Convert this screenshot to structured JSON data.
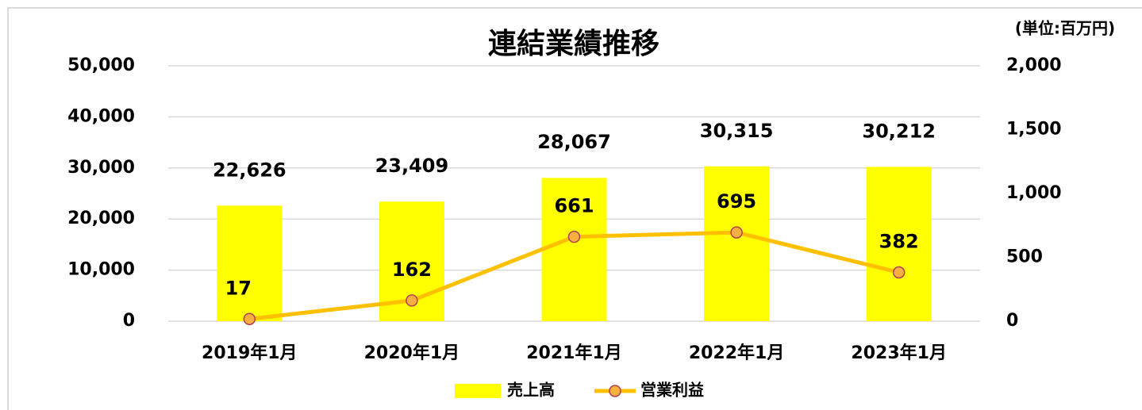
{
  "chart_data": {
    "type": "combo",
    "title": "連結業績推移",
    "annotation": "(単位:百万円)",
    "categories": [
      "2019年1月",
      "2020年1月",
      "2021年1月",
      "2022年1月",
      "2023年1月"
    ],
    "series": [
      {
        "name": "売上高",
        "type": "bar",
        "color": "#ffff00",
        "axis": "y",
        "values": [
          22626,
          23409,
          28067,
          30315,
          30212
        ],
        "value_labels": [
          "22,626",
          "23,409",
          "28,067",
          "30,315",
          "30,212"
        ]
      },
      {
        "name": "営業利益",
        "type": "line",
        "color": "#ffc000",
        "marker_color": "#f5b041",
        "marker_edge": "#b04050",
        "axis": "y2",
        "values": [
          17,
          162,
          661,
          695,
          382
        ]
      }
    ],
    "ylim": [
      0,
      50000
    ],
    "yticks": [
      0,
      {
        "value": 10000,
        "label": "10,000"
      },
      {
        "value": 20000,
        "label": "20,000"
      },
      {
        "value": 30000,
        "label": "30,000"
      },
      {
        "value": 40000,
        "label": "40,000"
      },
      {
        "value": 50000,
        "label": "50,000"
      }
    ],
    "y2lim": [
      0,
      2000
    ],
    "y2ticks": [
      0,
      500,
      {
        "value": 1000,
        "label": "1,000"
      },
      {
        "value": 1500,
        "label": "1,500"
      },
      {
        "value": 2000,
        "label": "2,000"
      }
    ],
    "grid": true,
    "legend": "bottom"
  }
}
